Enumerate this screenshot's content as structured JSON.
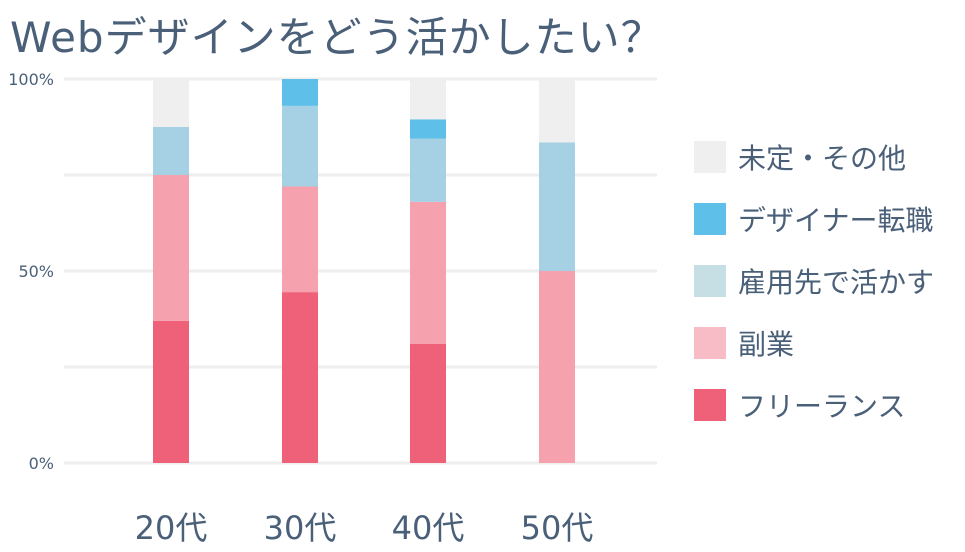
{
  "chart_data": {
    "type": "bar",
    "stacked": true,
    "title": "Webデザインをどう活かしたい？",
    "categories": [
      "20代",
      "30代",
      "40代",
      "50代"
    ],
    "series": [
      {
        "name": "フリーランス",
        "color": "#ef6178",
        "values": [
          37,
          44.5,
          31,
          0
        ]
      },
      {
        "name": "副業",
        "color": "#f5a1ae",
        "values": [
          38,
          27.5,
          37,
          50
        ]
      },
      {
        "name": "雇用先で活かす",
        "color": "#a6d0e3",
        "values": [
          12.5,
          21,
          16.5,
          33.5
        ]
      },
      {
        "name": "デザイナー転職",
        "color": "#5ec0e8",
        "values": [
          0,
          7,
          5,
          0
        ]
      },
      {
        "name": "未定・その他",
        "color": "#efefef",
        "values": [
          12.5,
          0,
          10.5,
          16.5
        ]
      }
    ],
    "legend_order": [
      "未定・その他",
      "デザイナー転職",
      "雇用先で活かす",
      "副業",
      "フリーランス"
    ],
    "legend_colors": {
      "未定・その他": "#efefef",
      "デザイナー転職": "#5ec0e8",
      "雇用先で活かす": "#c5dfe5",
      "副業": "#f7bcc6",
      "フリーランス": "#ef6178"
    },
    "yticks": [
      {
        "value": 0,
        "label": "0%"
      },
      {
        "value": 50,
        "label": "50%"
      },
      {
        "value": 100,
        "label": "100%"
      }
    ],
    "ylim": [
      0,
      100
    ],
    "gridlines": [
      0,
      25,
      50,
      75,
      100
    ],
    "grid": true,
    "grid_color": "#eeeeee",
    "legend_position": "right"
  }
}
